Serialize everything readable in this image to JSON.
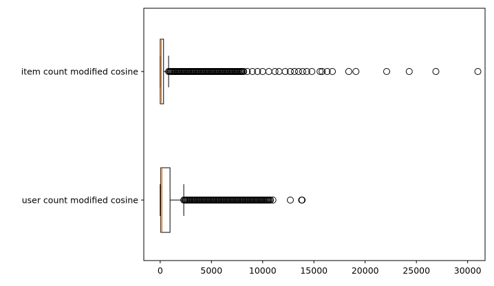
{
  "chart_data": {
    "type": "boxplot",
    "orientation": "horizontal",
    "title": "",
    "xlabel": "",
    "ylabel": "",
    "xlim": [
      -1600,
      31700
    ],
    "xticks": [
      0,
      5000,
      10000,
      15000,
      20000,
      25000,
      30000
    ],
    "grid": false,
    "median_color": "#ff7f0e",
    "categories": [
      "user count modified cosine",
      "item count modified cosine"
    ],
    "series": [
      {
        "label": "user count modified cosine",
        "whisker_low": 0,
        "q1": 60,
        "median": 180,
        "q3": 960,
        "whisker_high": 2300,
        "outlier_range": [
          2300,
          10800
        ],
        "outliers": [
          11000,
          12700,
          13800,
          13850
        ]
      },
      {
        "label": "item count modified cosine",
        "whisker_low": 0,
        "q1": 5,
        "median": 120,
        "q3": 330,
        "whisker_high": 820,
        "outlier_range": [
          820,
          8200
        ],
        "outliers": [
          8500,
          9000,
          9500,
          10000,
          10600,
          11200,
          11600,
          12200,
          12700,
          13100,
          13500,
          13900,
          14300,
          14800,
          15600,
          15800,
          16300,
          16800,
          18400,
          19100,
          22100,
          24300,
          26900,
          31000
        ]
      }
    ]
  }
}
